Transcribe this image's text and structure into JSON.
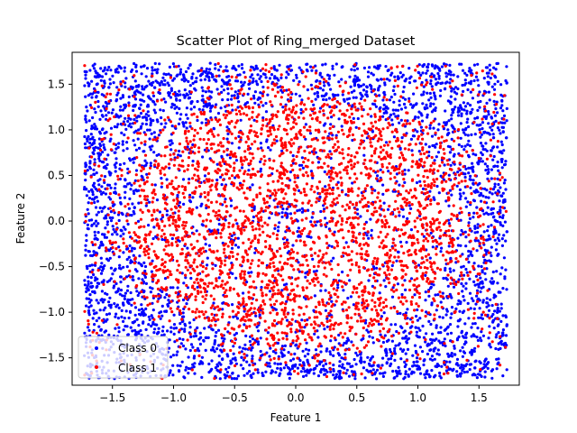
{
  "chart_data": {
    "type": "scatter",
    "title": "Scatter Plot of Ring_merged Dataset",
    "xlabel": "Feature 1",
    "ylabel": "Feature 2",
    "xlim": [
      -1.83,
      1.83
    ],
    "ylim": [
      -1.8,
      1.85
    ],
    "xticks": [
      -1.5,
      -1.0,
      -0.5,
      0.0,
      0.5,
      1.0,
      1.5
    ],
    "xtick_labels": [
      "−1.5",
      "−1.0",
      "−0.5",
      "0.0",
      "0.5",
      "1.0",
      "1.5"
    ],
    "yticks": [
      -1.5,
      -1.0,
      -0.5,
      0.0,
      0.5,
      1.0,
      1.5
    ],
    "ytick_labels": [
      "−1.5",
      "−1.0",
      "−0.5",
      "0.0",
      "0.5",
      "1.0",
      "1.5"
    ],
    "grid": false,
    "legend_position": "lower-left",
    "data_range": {
      "x": [
        -1.73,
        1.73
      ],
      "y": [
        -1.73,
        1.73
      ]
    },
    "series": [
      {
        "name": "Class 0",
        "color": "#0000ff",
        "marker": "circle"
      },
      {
        "name": "Class 1",
        "color": "#ff0000",
        "marker": "circle"
      }
    ]
  }
}
